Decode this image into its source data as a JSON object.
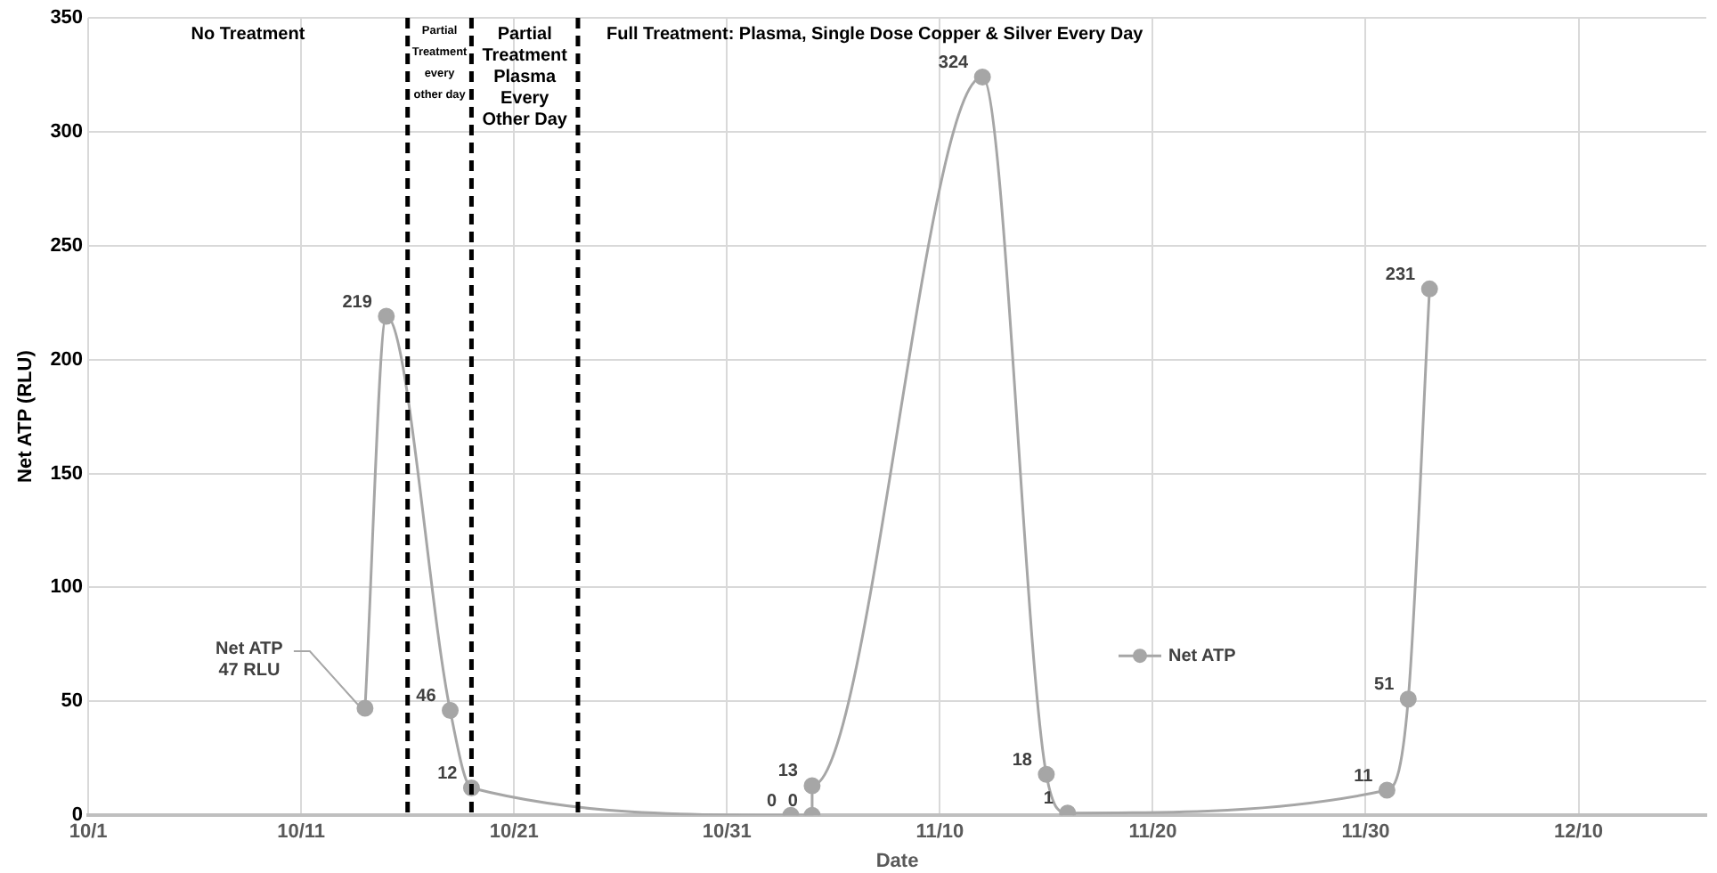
{
  "chart_data": {
    "type": "line",
    "xlabel": "Date",
    "ylabel": "Net ATP (RLU)",
    "x": [
      "--10-14",
      "--10-15",
      "--10-18",
      "--10-19",
      "--11-03",
      "--11-04",
      "--11-04",
      "--11-12",
      "--11-15",
      "--11-16",
      "--12-01",
      "--12-02",
      "--12-03"
    ],
    "series": [
      {
        "name": "Net ATP",
        "color": "#a6a6a6",
        "values": [
          47,
          219,
          46,
          12,
          0,
          0,
          13,
          324,
          18,
          1,
          11,
          51,
          231
        ],
        "value_labels": [
          null,
          "219",
          "46",
          "12",
          "0",
          "0",
          "13",
          "324",
          "18",
          "1",
          "11",
          "51",
          "231"
        ]
      }
    ],
    "xlim": [
      "--10-01",
      "--12-16"
    ],
    "xticks": [
      {
        "value": "--10-01",
        "label": "10/1"
      },
      {
        "value": "--10-11",
        "label": "10/11"
      },
      {
        "value": "--10-21",
        "label": "10/21"
      },
      {
        "value": "--10-31",
        "label": "10/31"
      },
      {
        "value": "--11-10",
        "label": "11/10"
      },
      {
        "value": "--11-20",
        "label": "11/20"
      },
      {
        "value": "--11-30",
        "label": "11/30"
      },
      {
        "value": "--12-10",
        "label": "12/10"
      }
    ],
    "ylim": [
      0,
      350
    ],
    "yticks": [
      0,
      50,
      100,
      150,
      200,
      250,
      300,
      350
    ],
    "ref_lines": [
      {
        "axis": "x",
        "value": "--10-16",
        "label": "Partial Treatment every other day",
        "color": "#000000",
        "line_style": "dashed"
      },
      {
        "axis": "x",
        "value": "--10-19",
        "label": "Partial Treatment Plasma Every Other Day",
        "color": "#000000",
        "line_style": "dashed"
      },
      {
        "axis": "x",
        "value": "--10-24",
        "label": "Full Treatment: Plasma, Single Dose Copper & Silver Every Day",
        "color": "#000000",
        "line_style": "dashed"
      }
    ],
    "annotations": [
      "No Treatment",
      {
        "text": "Net ATP 47 RLU",
        "x": "--10-14",
        "y": 47
      }
    ],
    "grid": true,
    "legend": "right",
    "marker": "circle",
    "line_style": "solid"
  }
}
